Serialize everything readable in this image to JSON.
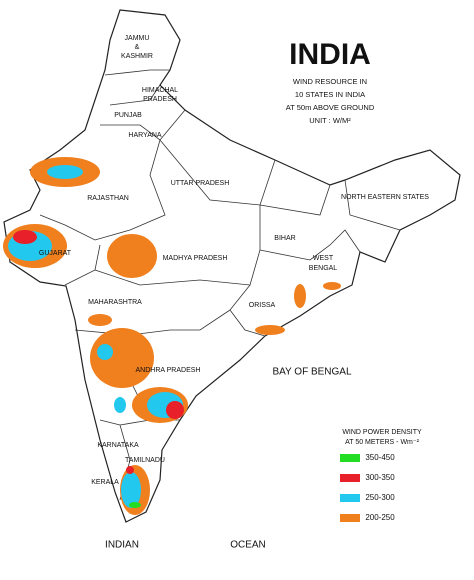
{
  "header": {
    "title": "INDIA",
    "subtitle_lines": [
      "WIND RESOURCE IN",
      "10 STATES IN INDIA",
      "AT 50m ABOVE GROUND",
      "UNIT : W/M²"
    ]
  },
  "regions": {
    "jammu_kashmir": [
      "JAMMU",
      "&",
      "KASHMIR"
    ],
    "himachal_pradesh": [
      "HIMACHAL",
      "PRADESH"
    ],
    "punjab": "PUNJAB",
    "haryana": "HARYANA",
    "rajasthan": "RAJASTHAN",
    "uttar_pradesh": "UTTAR PRADESH",
    "gujarat": "GUJARAT",
    "madhya_pradesh": "MADHYA PRADESH",
    "bihar": "BIHAR",
    "west_bengal": [
      "WEST",
      "BENGAL"
    ],
    "orissa": "ORISSA",
    "maharashtra": "MAHARASHTRA",
    "andhra_pradesh": "ANDHRA PRADESH",
    "karnataka": "KARNATAKA",
    "tamilnadu": "TAMILNADU",
    "kerala": "KERALA",
    "north_eastern_states": "NORTH EASTERN STATES"
  },
  "seas": {
    "bay": "BAY OF BENGAL",
    "indian": "INDIAN",
    "ocean": "OCEAN"
  },
  "legend": {
    "title_lines": [
      "WIND POWER DENSITY",
      "AT 50 METERS - Wm⁻²"
    ],
    "items": [
      {
        "label": "350-450",
        "color": "#22dd22"
      },
      {
        "label": "300-350",
        "color": "#e8202a"
      },
      {
        "label": "250-300",
        "color": "#22c8ee"
      },
      {
        "label": "200-250",
        "color": "#f07f1e"
      }
    ]
  }
}
